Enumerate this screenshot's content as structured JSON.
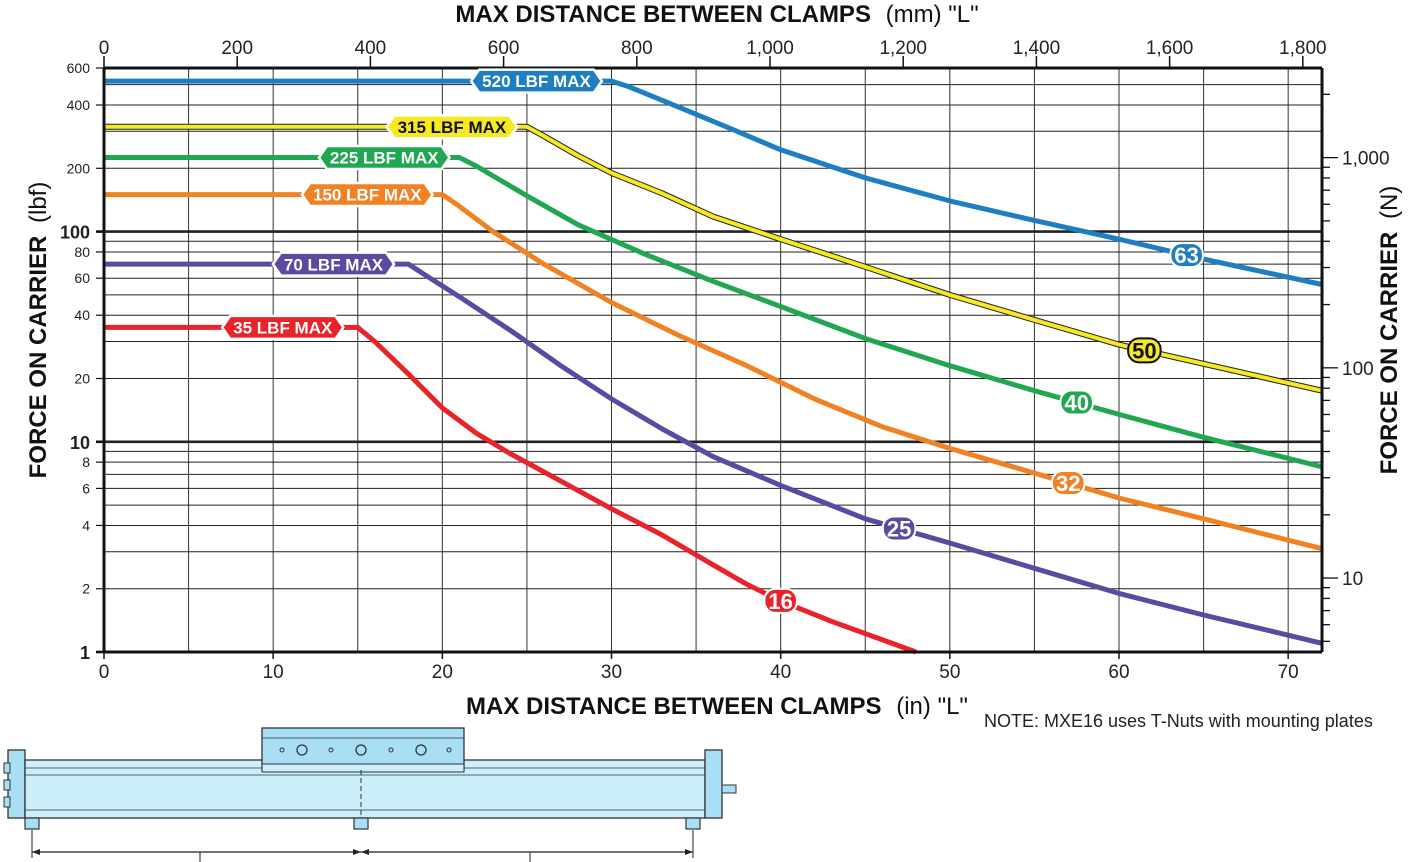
{
  "note": "NOTE: MXE16 uses T-Nuts with mounting plates",
  "chart_data": {
    "type": "line",
    "title": "",
    "x_scale": "linear",
    "y_scale": "log",
    "xlim": [
      0,
      72
    ],
    "ylim": [
      1,
      600
    ],
    "grid": true,
    "legend": "inline labels on curves",
    "x_bottom": {
      "label": "MAX DISTANCE BETWEEN CLAMPS",
      "unit": "(in) \"L\"",
      "ticks": [
        0,
        10,
        20,
        30,
        40,
        50,
        60,
        70
      ],
      "tick_labels": [
        "0",
        "10",
        "20",
        "30",
        "40",
        "50",
        "60",
        "70"
      ]
    },
    "x_top": {
      "label": "MAX DISTANCE BETWEEN CLAMPS",
      "unit": "(mm) \"L\"",
      "ticks": [
        0,
        200,
        400,
        600,
        800,
        1000,
        1200,
        1400,
        1600,
        1800
      ],
      "tick_labels": [
        "0",
        "200",
        "400",
        "600",
        "800",
        "1,000",
        "1,200",
        "1,400",
        "1,600",
        "1,800"
      ]
    },
    "y_left": {
      "label": "FORCE ON CARRIER",
      "unit": "(lbf)",
      "ticks": [
        1,
        2,
        4,
        6,
        8,
        10,
        20,
        40,
        60,
        80,
        100,
        200,
        400,
        600
      ],
      "tick_labels": [
        "1",
        "2",
        "4",
        "6",
        "8",
        "10",
        "20",
        "40",
        "60",
        "80",
        "100",
        "200",
        "400",
        "600"
      ]
    },
    "y_right": {
      "label": "FORCE ON CARRIER",
      "unit": "(N)",
      "ticks": [
        10,
        100,
        1000
      ],
      "tick_labels": [
        "10",
        "100",
        "1,000"
      ]
    },
    "series": [
      {
        "name": "16",
        "color": "#e8232a",
        "max_label": "35 LBF MAX",
        "points": [
          [
            0,
            35
          ],
          [
            15,
            35
          ],
          [
            16,
            30
          ],
          [
            18,
            21
          ],
          [
            20,
            14.5
          ],
          [
            22,
            11
          ],
          [
            24,
            8.8
          ],
          [
            27,
            6.5
          ],
          [
            30,
            4.8
          ],
          [
            33,
            3.6
          ],
          [
            36,
            2.6
          ],
          [
            38,
            2.1
          ],
          [
            40,
            1.75
          ],
          [
            43,
            1.4
          ],
          [
            48,
            1.0
          ]
        ]
      },
      {
        "name": "25",
        "color": "#5b4a9f",
        "max_label": "70 LBF MAX",
        "points": [
          [
            0,
            70
          ],
          [
            18,
            70
          ],
          [
            19,
            62
          ],
          [
            21,
            49
          ],
          [
            24,
            34
          ],
          [
            27,
            23
          ],
          [
            30,
            16
          ],
          [
            33,
            11.5
          ],
          [
            36,
            8.5
          ],
          [
            40,
            6.2
          ],
          [
            45,
            4.3
          ],
          [
            50,
            3.3
          ],
          [
            55,
            2.5
          ],
          [
            60,
            1.9
          ],
          [
            65,
            1.5
          ],
          [
            72,
            1.1
          ]
        ]
      },
      {
        "name": "32",
        "color": "#f08224",
        "max_label": "150 LBF MAX",
        "points": [
          [
            0,
            150
          ],
          [
            20,
            150
          ],
          [
            21,
            132
          ],
          [
            23,
            100
          ],
          [
            26,
            70
          ],
          [
            30,
            46
          ],
          [
            34,
            32
          ],
          [
            38,
            23
          ],
          [
            42,
            16
          ],
          [
            46,
            11.8
          ],
          [
            50,
            9.3
          ],
          [
            55,
            7.1
          ],
          [
            60,
            5.4
          ],
          [
            65,
            4.3
          ],
          [
            72,
            3.1
          ]
        ]
      },
      {
        "name": "40",
        "color": "#21a652",
        "max_label": "225 LBF MAX",
        "points": [
          [
            0,
            225
          ],
          [
            21,
            225
          ],
          [
            22,
            205
          ],
          [
            25,
            148
          ],
          [
            28,
            108
          ],
          [
            32,
            78
          ],
          [
            36,
            58
          ],
          [
            40,
            44
          ],
          [
            45,
            31
          ],
          [
            50,
            23
          ],
          [
            55,
            17.5
          ],
          [
            60,
            13.5
          ],
          [
            65,
            10.5
          ],
          [
            72,
            7.6
          ]
        ]
      },
      {
        "name": "50",
        "color": "#f6e923",
        "max_label": "315 LBF MAX",
        "points": [
          [
            0,
            315
          ],
          [
            25,
            315
          ],
          [
            26,
            285
          ],
          [
            28,
            230
          ],
          [
            30,
            190
          ],
          [
            33,
            152
          ],
          [
            36,
            118
          ],
          [
            40,
            92
          ],
          [
            45,
            68
          ],
          [
            50,
            50
          ],
          [
            55,
            38
          ],
          [
            60,
            29
          ],
          [
            65,
            23.5
          ],
          [
            72,
            17.5
          ]
        ]
      },
      {
        "name": "63",
        "color": "#1d7fc2",
        "max_label": "520 LBF MAX",
        "points": [
          [
            0,
            520
          ],
          [
            30,
            520
          ],
          [
            31,
            490
          ],
          [
            34,
            390
          ],
          [
            37,
            310
          ],
          [
            40,
            245
          ],
          [
            45,
            180
          ],
          [
            50,
            140
          ],
          [
            55,
            113
          ],
          [
            60,
            92
          ],
          [
            65,
            74
          ],
          [
            72,
            56
          ]
        ]
      }
    ]
  }
}
